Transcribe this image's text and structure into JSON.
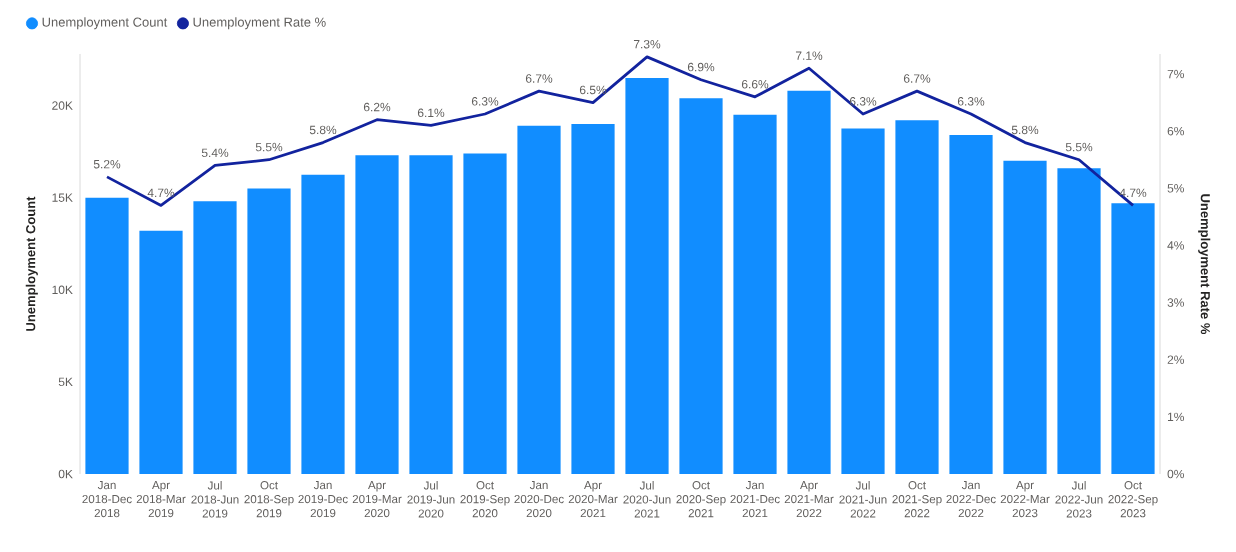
{
  "chart_data": {
    "type": "bar",
    "categories": [
      "Jan 2018-Dec 2018",
      "Apr 2018-Mar 2019",
      "Jul 2018-Jun 2019",
      "Oct 2018-Sep 2019",
      "Jan 2019-Dec 2019",
      "Apr 2019-Mar 2020",
      "Jul 2019-Jun 2020",
      "Oct 2019-Sep 2020",
      "Jan 2020-Dec 2020",
      "Apr 2020-Mar 2021",
      "Jul 2020-Jun 2021",
      "Oct 2020-Sep 2021",
      "Jan 2021-Dec 2021",
      "Apr 2021-Mar 2022",
      "Jul 2021-Jun 2022",
      "Oct 2021-Sep 2022",
      "Jan 2022-Dec 2022",
      "Apr 2022-Mar 2023",
      "Jul 2022-Jun 2023",
      "Oct 2022-Sep 2023"
    ],
    "ylabel": "Unemployment Count",
    "y2label": "Unemployment Rate %",
    "ylim": [
      0,
      22800
    ],
    "yticks": [
      {
        "value": 0,
        "label": "0K"
      },
      {
        "value": 5000,
        "label": "5K"
      },
      {
        "value": 10000,
        "label": "10K"
      },
      {
        "value": 15000,
        "label": "15K"
      },
      {
        "value": 20000,
        "label": "20K"
      }
    ],
    "y2lim": [
      0,
      7.35
    ],
    "y2ticks": [
      {
        "value": 0,
        "label": "0%"
      },
      {
        "value": 1,
        "label": "1%"
      },
      {
        "value": 2,
        "label": "2%"
      },
      {
        "value": 3,
        "label": "3%"
      },
      {
        "value": 4,
        "label": "4%"
      },
      {
        "value": 5,
        "label": "5%"
      },
      {
        "value": 6,
        "label": "6%"
      },
      {
        "value": 7,
        "label": "7%"
      }
    ],
    "legend": "top left",
    "grid": false,
    "series": [
      {
        "name": "Unemployment Count",
        "color": "#118dff",
        "values": [
          15000,
          13200,
          14800,
          15500,
          16250,
          17300,
          17300,
          17400,
          18900,
          19000,
          21500,
          20400,
          19500,
          20800,
          18750,
          19200,
          18400,
          17000,
          16600,
          14700
        ]
      },
      {
        "name": "Unemployment Rate %",
        "type": "line",
        "axis": "y2",
        "color": "#12239e",
        "values": [
          5.2,
          4.7,
          5.4,
          5.5,
          5.8,
          6.2,
          6.1,
          6.3,
          6.7,
          6.5,
          7.3,
          6.9,
          6.6,
          7.1,
          6.3,
          6.7,
          6.3,
          5.8,
          5.5,
          4.7
        ],
        "value_labels": [
          "5.2%",
          "4.7%",
          "5.4%",
          "5.5%",
          "5.8%",
          "6.2%",
          "6.1%",
          "6.3%",
          "6.7%",
          "6.5%",
          "7.3%",
          "6.9%",
          "6.6%",
          "7.1%",
          "6.3%",
          "6.7%",
          "6.3%",
          "5.8%",
          "5.5%",
          "4.7%"
        ]
      }
    ]
  }
}
